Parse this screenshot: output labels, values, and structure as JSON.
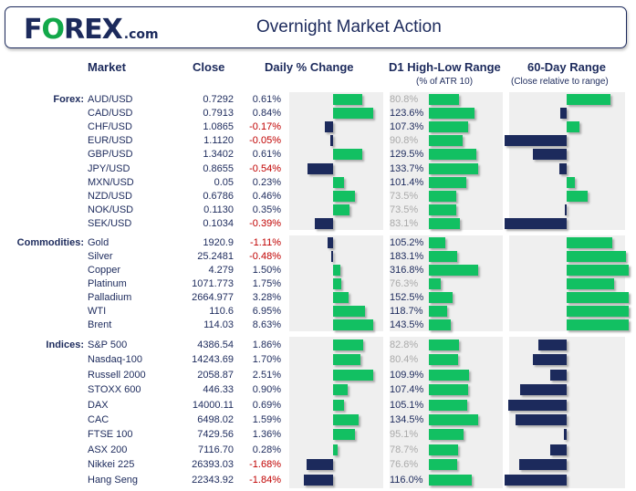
{
  "header": {
    "logo": "FOREX.com",
    "title": "Overnight Market Action"
  },
  "columns": {
    "market": "Market",
    "close": "Close",
    "daily": "Daily % Change",
    "d1": "D1 High-Low Range",
    "d1_sub": "(% of ATR 10)",
    "range60": "60-Day Range",
    "range60_sub": "(Close relative to range)"
  },
  "colors": {
    "positive": "#12c062",
    "negative": "#1c2a5c",
    "negative_text": "#c00000",
    "below_100_text": "#aaaaaa"
  },
  "sections": [
    {
      "label": "Forex:",
      "rows": [
        {
          "market": "AUD/USD",
          "close": "0.7292",
          "change": "0.61%",
          "d1": "80.8%",
          "range60": 0.7
        },
        {
          "market": "CAD/USD",
          "close": "0.7913",
          "change": "0.84%",
          "d1": "123.6%",
          "range60": -0.1
        },
        {
          "market": "CHF/USD",
          "close": "1.0865",
          "change": "-0.17%",
          "d1": "107.3%",
          "range60": 0.2
        },
        {
          "market": "EUR/USD",
          "close": "1.1120",
          "change": "-0.05%",
          "d1": "90.8%",
          "range60": -1.0
        },
        {
          "market": "GBP/USD",
          "close": "1.3402",
          "change": "0.61%",
          "d1": "129.5%",
          "range60": -0.55
        },
        {
          "market": "JPY/USD",
          "close": "0.8655",
          "change": "-0.54%",
          "d1": "133.7%",
          "range60": -0.12
        },
        {
          "market": "MXN/USD",
          "close": "0.05",
          "change": "0.23%",
          "d1": "101.4%",
          "range60": 0.13
        },
        {
          "market": "NZD/USD",
          "close": "0.6786",
          "change": "0.46%",
          "d1": "73.5%",
          "range60": 0.34
        },
        {
          "market": "NOK/USD",
          "close": "0.1130",
          "change": "0.35%",
          "d1": "73.5%",
          "range60": -0.02
        },
        {
          "market": "SEK/USD",
          "close": "0.1034",
          "change": "-0.39%",
          "d1": "83.1%",
          "range60": -1.0
        }
      ]
    },
    {
      "label": "Commodities:",
      "rows": [
        {
          "market": "Gold",
          "close": "1920.9",
          "change": "-1.11%",
          "d1": "105.2%",
          "range60": 0.74
        },
        {
          "market": "Silver",
          "close": "25.2481",
          "change": "-0.48%",
          "d1": "183.1%",
          "range60": 0.95
        },
        {
          "market": "Copper",
          "close": "4.279",
          "change": "1.50%",
          "d1": "316.8%",
          "range60": 1.0
        },
        {
          "market": "Platinum",
          "close": "1071.773",
          "change": "1.75%",
          "d1": "76.3%",
          "range60": 0.77
        },
        {
          "market": "Palladium",
          "close": "2664.977",
          "change": "3.28%",
          "d1": "152.5%",
          "range60": 1.0
        },
        {
          "market": "WTI",
          "close": "110.6",
          "change": "6.95%",
          "d1": "118.7%",
          "range60": 1.0
        },
        {
          "market": "Brent",
          "close": "114.03",
          "change": "8.63%",
          "d1": "143.5%",
          "range60": 1.0
        }
      ]
    },
    {
      "label": "Indices:",
      "rows": [
        {
          "market": "S&P 500",
          "close": "4386.54",
          "change": "1.86%",
          "d1": "82.8%",
          "range60": -0.45
        },
        {
          "market": "Nasdaq-100",
          "close": "14243.69",
          "change": "1.70%",
          "d1": "80.4%",
          "range60": -0.54
        },
        {
          "market": "Russell 2000",
          "close": "2058.87",
          "change": "2.51%",
          "d1": "109.9%",
          "range60": -0.26
        },
        {
          "market": "STOXX 600",
          "close": "446.33",
          "change": "0.90%",
          "d1": "107.4%",
          "range60": -0.75
        },
        {
          "market": "DAX",
          "close": "14000.11",
          "change": "0.69%",
          "d1": "105.1%",
          "range60": -0.94
        },
        {
          "market": "CAC",
          "close": "6498.02",
          "change": "1.59%",
          "d1": "134.5%",
          "range60": -0.82
        },
        {
          "market": "FTSE 100",
          "close": "7429.56",
          "change": "1.36%",
          "d1": "95.1%",
          "range60": -0.05
        },
        {
          "market": "ASX 200",
          "close": "7116.70",
          "change": "0.28%",
          "d1": "78.7%",
          "range60": -0.27
        },
        {
          "market": "Nikkei 225",
          "close": "26393.03",
          "change": "-1.68%",
          "d1": "76.6%",
          "range60": -0.77
        },
        {
          "market": "Hang Seng",
          "close": "22343.92",
          "change": "-1.84%",
          "d1": "116.0%",
          "range60": -1.0
        }
      ]
    }
  ]
}
